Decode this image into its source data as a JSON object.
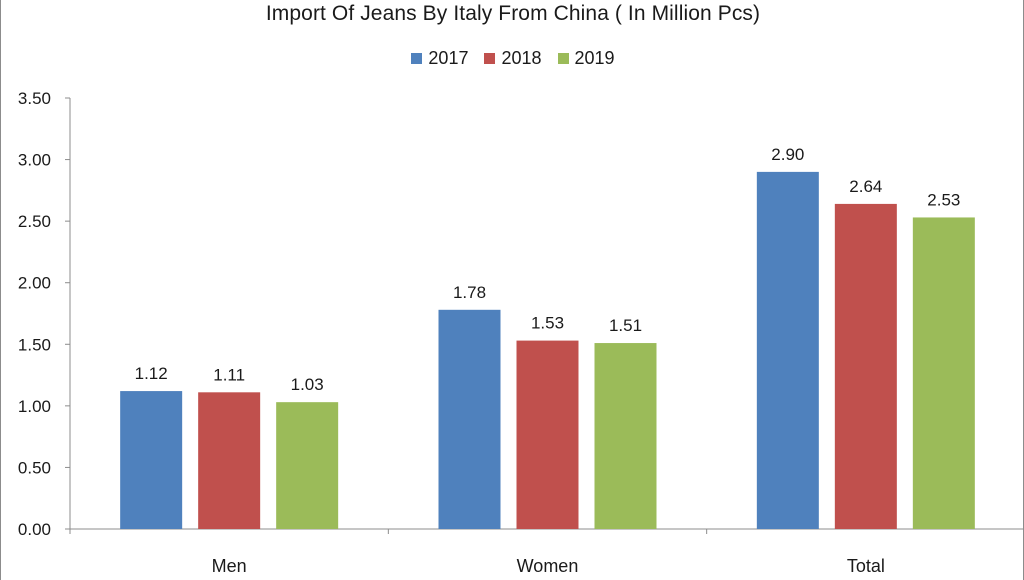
{
  "colors": {
    "series_2017": "#4f81bd",
    "series_2018": "#c0504d",
    "series_2019": "#9bbb59",
    "axis": "#8c8c8c"
  },
  "chart_data": {
    "type": "bar",
    "title": "Import Of Jeans By Italy From China ( In Million Pcs)",
    "categories": [
      "Men",
      "Women",
      "Total"
    ],
    "series": [
      {
        "name": "2017",
        "values": [
          1.12,
          1.78,
          2.9
        ],
        "labels": [
          "1.12",
          "1.78",
          "2.90"
        ]
      },
      {
        "name": "2018",
        "values": [
          1.11,
          1.53,
          2.64
        ],
        "labels": [
          "1.11",
          "1.53",
          "2.64"
        ]
      },
      {
        "name": "2019",
        "values": [
          1.03,
          1.51,
          2.53
        ],
        "labels": [
          "1.03",
          "1.51",
          "2.53"
        ]
      }
    ],
    "ylim": [
      0,
      3.5
    ],
    "yticks": [
      "0.00",
      "0.50",
      "1.00",
      "1.50",
      "2.00",
      "2.50",
      "3.00",
      "3.50"
    ],
    "xlabel": "",
    "ylabel": "",
    "grid": false,
    "legend_position": "top"
  }
}
